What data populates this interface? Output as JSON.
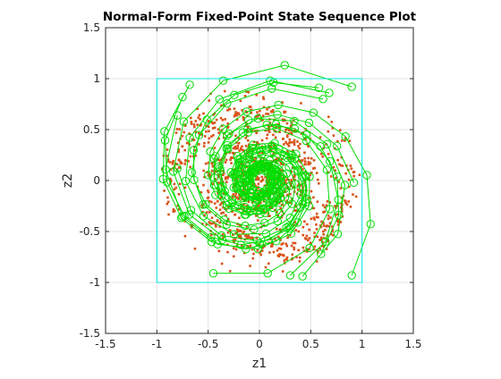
{
  "chart_data": {
    "type": "scatter",
    "title": "Normal-Form Fixed-Point State Sequence Plot",
    "xlabel": "z1",
    "ylabel": "z2",
    "xlim": [
      -1.5,
      1.5
    ],
    "ylim": [
      -1.5,
      1.5
    ],
    "xticks": [
      "-1.5",
      "-1",
      "-0.5",
      "0",
      "0.5",
      "1",
      "1.5"
    ],
    "yticks": [
      "-1.5",
      "-1",
      "-0.5",
      "0",
      "0.5",
      "1",
      "1.5"
    ],
    "grid": true,
    "legend": "none",
    "box": {
      "x": [
        -1,
        1
      ],
      "y": [
        -1,
        1
      ],
      "color": "#00e5e5"
    },
    "colors": {
      "trajectory": "#00dd00",
      "states": "#d95319",
      "axes": "#262626",
      "grid": "#e3e3e3"
    },
    "series": [
      {
        "kind": "trajectories",
        "start_points": [
          [
            0.9,
            0.92
          ],
          [
            0.68,
            0.86
          ],
          [
            0.58,
            0.91
          ],
          [
            0.62,
            0.8
          ],
          [
            -0.68,
            0.94
          ],
          [
            -0.75,
            0.82
          ],
          [
            -0.8,
            0.64
          ],
          [
            -0.8,
            0.12
          ],
          [
            0.92,
            -0.02
          ],
          [
            0.9,
            -0.93
          ],
          [
            0.6,
            -0.72
          ],
          [
            0.42,
            -0.94
          ],
          [
            0.3,
            -0.93
          ],
          [
            -0.45,
            -0.91
          ]
        ]
      },
      {
        "kind": "states",
        "count": 1100
      }
    ]
  }
}
